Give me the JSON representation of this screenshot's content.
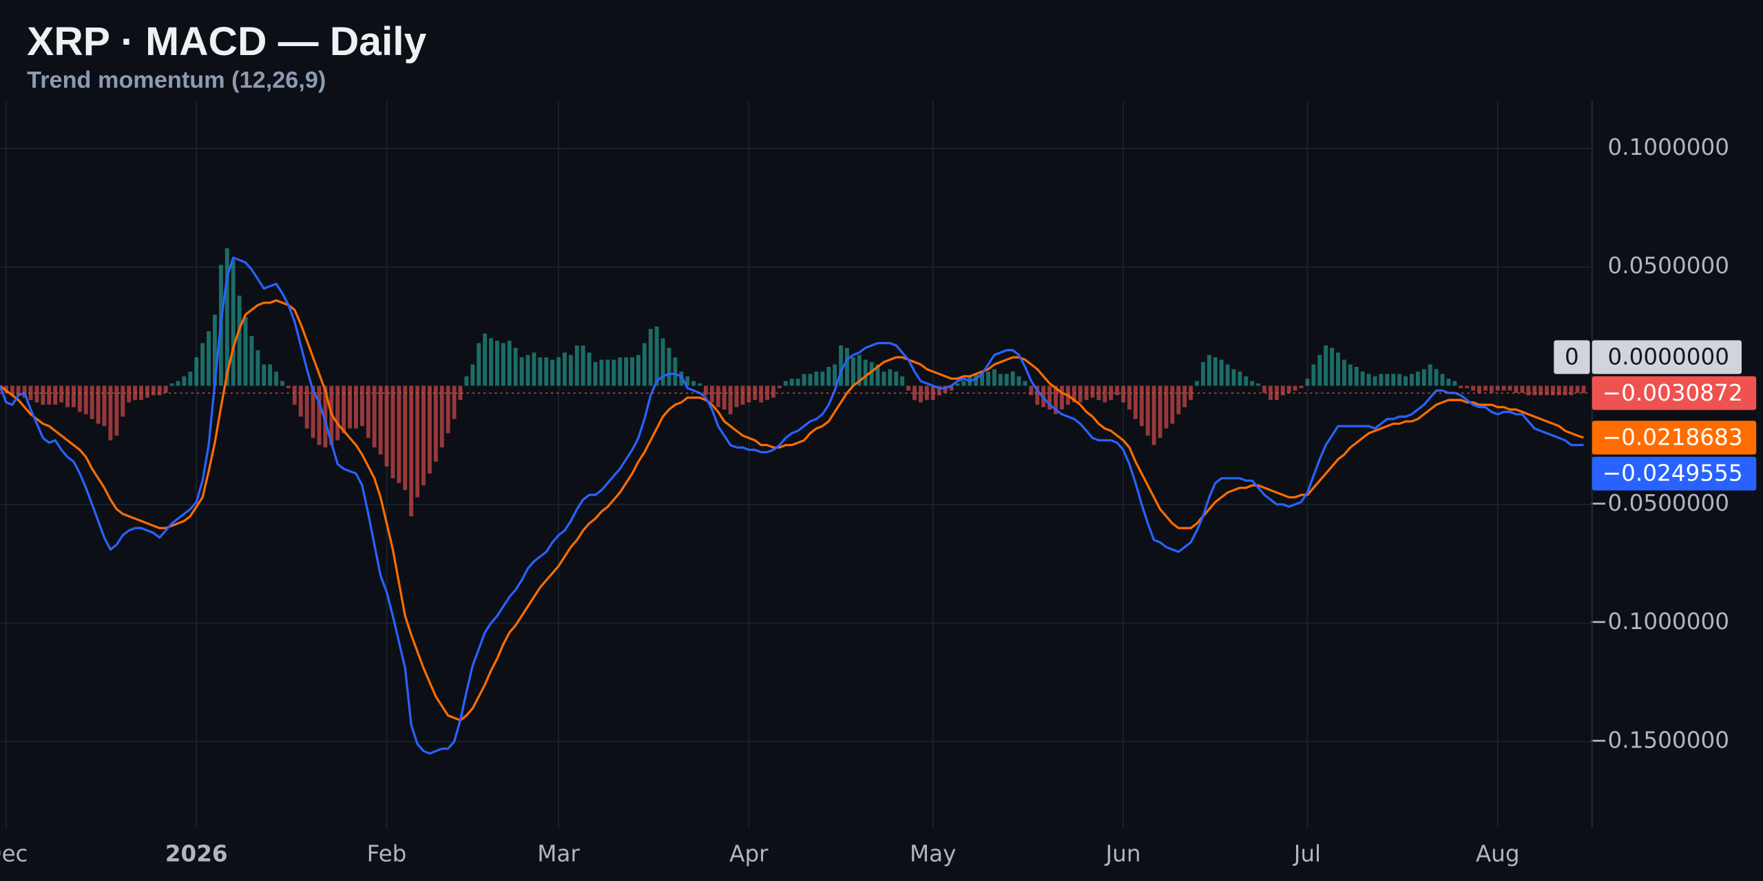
{
  "chart_data": {
    "type": "line",
    "title": "XRP · MACD — Daily",
    "subtitle": "Trend momentum (12,26,9)",
    "xlim": [
      0,
      259.2
    ],
    "xticks": [
      {
        "value": 1,
        "label": "Dec"
      },
      {
        "value": 32,
        "label": "2026"
      },
      {
        "value": 63,
        "label": "Feb"
      },
      {
        "value": 91,
        "label": "Mar"
      },
      {
        "value": 122,
        "label": "Apr"
      },
      {
        "value": 152,
        "label": "May"
      },
      {
        "value": 183,
        "label": "Jun"
      },
      {
        "value": 213,
        "label": "Jul"
      },
      {
        "value": 244,
        "label": "Aug"
      }
    ],
    "ylim": [
      -0.1865,
      0.12
    ],
    "yticks": [
      {
        "value": 0.1,
        "label": "0.1000000"
      },
      {
        "value": 0.05,
        "label": "0.0500000"
      },
      {
        "value": -0.05,
        "label": "−0.0500000"
      },
      {
        "value": -0.1,
        "label": "−0.1000000"
      },
      {
        "value": -0.15,
        "label": "−0.1500000"
      }
    ],
    "grid": true,
    "zero_line": {
      "value": 0,
      "title": "0",
      "label": "0.0000000"
    },
    "series": [
      {
        "type": "bar",
        "color": "#ef5350",
        "positive_color": "#26a69a",
        "last_label": "−0.0030872",
        "values": [
          -0.002,
          -0.003,
          -0.004,
          -0.004,
          -0.005,
          -0.006,
          -0.007,
          -0.008,
          -0.008,
          -0.008,
          -0.007,
          -0.009,
          -0.009,
          -0.011,
          -0.012,
          -0.014,
          -0.016,
          -0.017,
          -0.023,
          -0.021,
          -0.013,
          -0.007,
          -0.006,
          -0.006,
          -0.005,
          -0.004,
          -0.004,
          -0.003,
          0.001,
          0.002,
          0.004,
          0.006,
          0.012,
          0.018,
          0.023,
          0.03,
          0.051,
          0.058,
          0.053,
          0.038,
          0.029,
          0.021,
          0.015,
          0.009,
          0.009,
          0.006,
          0.002,
          -0.001,
          -0.008,
          -0.013,
          -0.018,
          -0.022,
          -0.025,
          -0.026,
          -0.025,
          -0.023,
          -0.02,
          -0.018,
          -0.018,
          -0.017,
          -0.022,
          -0.026,
          -0.029,
          -0.034,
          -0.039,
          -0.041,
          -0.044,
          -0.055,
          -0.047,
          -0.042,
          -0.037,
          -0.032,
          -0.026,
          -0.02,
          -0.014,
          -0.006,
          0.004,
          0.009,
          0.018,
          0.022,
          0.02,
          0.019,
          0.018,
          0.019,
          0.016,
          0.012,
          0.013,
          0.014,
          0.012,
          0.012,
          0.011,
          0.012,
          0.014,
          0.013,
          0.017,
          0.017,
          0.014,
          0.01,
          0.011,
          0.011,
          0.011,
          0.012,
          0.012,
          0.012,
          0.013,
          0.018,
          0.024,
          0.025,
          0.02,
          0.016,
          0.012,
          0.006,
          0.004,
          0.002,
          0.001,
          -0.004,
          -0.007,
          -0.009,
          -0.01,
          -0.012,
          -0.009,
          -0.008,
          -0.007,
          -0.006,
          -0.007,
          -0.006,
          -0.005,
          -0.001,
          0.002,
          0.003,
          0.003,
          0.005,
          0.005,
          0.006,
          0.006,
          0.008,
          0.009,
          0.017,
          0.016,
          0.012,
          0.013,
          0.011,
          0.01,
          0.009,
          0.006,
          0.007,
          0.006,
          0.004,
          -0.002,
          -0.006,
          -0.007,
          -0.006,
          -0.006,
          -0.004,
          -0.003,
          -0.002,
          0.001,
          0.002,
          0.004,
          0.005,
          0.005,
          0.006,
          0.007,
          0.005,
          0.005,
          0.006,
          0.004,
          0.002,
          -0.004,
          -0.008,
          -0.009,
          -0.01,
          -0.012,
          -0.01,
          -0.008,
          -0.007,
          -0.007,
          -0.006,
          -0.005,
          -0.006,
          -0.007,
          -0.006,
          -0.004,
          -0.007,
          -0.01,
          -0.014,
          -0.017,
          -0.021,
          -0.025,
          -0.022,
          -0.018,
          -0.016,
          -0.012,
          -0.009,
          -0.006,
          0.002,
          0.01,
          0.013,
          0.012,
          0.011,
          0.009,
          0.007,
          0.006,
          0.004,
          0.002,
          0.001,
          -0.003,
          -0.006,
          -0.006,
          -0.004,
          -0.003,
          -0.002,
          -0.001,
          0.003,
          0.009,
          0.013,
          0.017,
          0.016,
          0.014,
          0.011,
          0.009,
          0.008,
          0.006,
          0.005,
          0.004,
          0.005,
          0.005,
          0.005,
          0.005,
          0.004,
          0.005,
          0.006,
          0.007,
          0.009,
          0.007,
          0.005,
          0.003,
          0.002,
          -0.001,
          -0.001,
          -0.002,
          -0.003,
          -0.002,
          -0.003,
          -0.002,
          -0.002,
          -0.002,
          -0.003,
          -0.003,
          -0.004,
          -0.004,
          -0.004,
          -0.004,
          -0.004,
          -0.004,
          -0.004,
          -0.004,
          -0.003,
          -0.0030872
        ]
      },
      {
        "type": "line",
        "color": "#ff6d00",
        "last_label": "−0.0218683",
        "values": [
          0,
          -0.002,
          -0.004,
          -0.006,
          -0.009,
          -0.012,
          -0.014,
          -0.016,
          -0.017,
          -0.019,
          -0.021,
          -0.023,
          -0.025,
          -0.027,
          -0.03,
          -0.035,
          -0.039,
          -0.043,
          -0.048,
          -0.052,
          -0.054,
          -0.055,
          -0.056,
          -0.057,
          -0.058,
          -0.059,
          -0.06,
          -0.06,
          -0.059,
          -0.058,
          -0.057,
          -0.055,
          -0.051,
          -0.047,
          -0.036,
          -0.024,
          -0.009,
          0.005,
          0.016,
          0.024,
          0.03,
          0.032,
          0.034,
          0.035,
          0.035,
          0.036,
          0.035,
          0.034,
          0.032,
          0.026,
          0.019,
          0.012,
          0.005,
          -0.002,
          -0.012,
          -0.016,
          -0.019,
          -0.022,
          -0.025,
          -0.029,
          -0.034,
          -0.039,
          -0.047,
          -0.058,
          -0.069,
          -0.083,
          -0.097,
          -0.105,
          -0.112,
          -0.119,
          -0.125,
          -0.131,
          -0.135,
          -0.139,
          -0.14,
          -0.141,
          -0.139,
          -0.136,
          -0.131,
          -0.126,
          -0.12,
          -0.115,
          -0.109,
          -0.104,
          -0.101,
          -0.097,
          -0.093,
          -0.089,
          -0.085,
          -0.082,
          -0.079,
          -0.076,
          -0.072,
          -0.068,
          -0.065,
          -0.061,
          -0.058,
          -0.056,
          -0.053,
          -0.051,
          -0.048,
          -0.045,
          -0.041,
          -0.037,
          -0.032,
          -0.028,
          -0.023,
          -0.018,
          -0.013,
          -0.01,
          -0.008,
          -0.007,
          -0.005,
          -0.005,
          -0.005,
          -0.006,
          -0.008,
          -0.011,
          -0.015,
          -0.017,
          -0.019,
          -0.021,
          -0.022,
          -0.023,
          -0.025,
          -0.025,
          -0.026,
          -0.026,
          -0.025,
          -0.025,
          -0.024,
          -0.023,
          -0.02,
          -0.018,
          -0.017,
          -0.015,
          -0.011,
          -0.007,
          -0.003,
          0,
          0.002,
          0.004,
          0.006,
          0.008,
          0.01,
          0.011,
          0.012,
          0.012,
          0.011,
          0.01,
          0.009,
          0.007,
          0.006,
          0.005,
          0.004,
          0.003,
          0.003,
          0.004,
          0.004,
          0.005,
          0.006,
          0.007,
          0.009,
          0.01,
          0.011,
          0.012,
          0.012,
          0.011,
          0.009,
          0.007,
          0.004,
          0.001,
          -0.001,
          -0.003,
          -0.004,
          -0.006,
          -0.008,
          -0.011,
          -0.013,
          -0.016,
          -0.018,
          -0.019,
          -0.021,
          -0.023,
          -0.026,
          -0.032,
          -0.037,
          -0.042,
          -0.047,
          -0.052,
          -0.055,
          -0.058,
          -0.06,
          -0.06,
          -0.06,
          -0.058,
          -0.055,
          -0.052,
          -0.049,
          -0.047,
          -0.045,
          -0.044,
          -0.043,
          -0.043,
          -0.042,
          -0.042,
          -0.043,
          -0.044,
          -0.045,
          -0.046,
          -0.047,
          -0.047,
          -0.046,
          -0.046,
          -0.043,
          -0.04,
          -0.037,
          -0.034,
          -0.031,
          -0.029,
          -0.026,
          -0.024,
          -0.022,
          -0.02,
          -0.019,
          -0.018,
          -0.017,
          -0.016,
          -0.016,
          -0.015,
          -0.015,
          -0.014,
          -0.012,
          -0.01,
          -0.008,
          -0.007,
          -0.006,
          -0.006,
          -0.006,
          -0.007,
          -0.007,
          -0.008,
          -0.008,
          -0.008,
          -0.009,
          -0.009,
          -0.01,
          -0.01,
          -0.011,
          -0.012,
          -0.013,
          -0.014,
          -0.015,
          -0.016,
          -0.017,
          -0.019,
          -0.02,
          -0.021,
          -0.0218683
        ]
      },
      {
        "type": "line",
        "color": "#2962ff",
        "last_label": "−0.0249555",
        "values": [
          0,
          -0.007,
          -0.008,
          -0.004,
          -0.003,
          -0.01,
          -0.016,
          -0.022,
          -0.024,
          -0.023,
          -0.027,
          -0.03,
          -0.032,
          -0.037,
          -0.043,
          -0.05,
          -0.057,
          -0.064,
          -0.069,
          -0.067,
          -0.063,
          -0.061,
          -0.06,
          -0.06,
          -0.061,
          -0.062,
          -0.064,
          -0.061,
          -0.058,
          -0.056,
          -0.054,
          -0.052,
          -0.049,
          -0.04,
          -0.025,
          0.001,
          0.027,
          0.046,
          0.054,
          0.053,
          0.052,
          0.049,
          0.045,
          0.041,
          0.042,
          0.043,
          0.039,
          0.034,
          0.027,
          0.017,
          0.007,
          -0.002,
          -0.007,
          -0.015,
          -0.024,
          -0.033,
          -0.035,
          -0.036,
          -0.037,
          -0.042,
          -0.054,
          -0.067,
          -0.08,
          -0.087,
          -0.097,
          -0.108,
          -0.119,
          -0.143,
          -0.151,
          -0.154,
          -0.155,
          -0.154,
          -0.153,
          -0.153,
          -0.15,
          -0.141,
          -0.129,
          -0.118,
          -0.111,
          -0.104,
          -0.1,
          -0.097,
          -0.093,
          -0.089,
          -0.086,
          -0.082,
          -0.077,
          -0.074,
          -0.072,
          -0.07,
          -0.066,
          -0.063,
          -0.061,
          -0.057,
          -0.052,
          -0.048,
          -0.046,
          -0.046,
          -0.044,
          -0.041,
          -0.038,
          -0.035,
          -0.031,
          -0.027,
          -0.022,
          -0.014,
          -0.004,
          0.002,
          0.004,
          0.005,
          0.005,
          0.004,
          -0.001,
          -0.002,
          -0.003,
          -0.005,
          -0.01,
          -0.017,
          -0.021,
          -0.025,
          -0.026,
          -0.026,
          -0.027,
          -0.027,
          -0.028,
          -0.028,
          -0.027,
          -0.025,
          -0.022,
          -0.02,
          -0.019,
          -0.017,
          -0.015,
          -0.014,
          -0.012,
          -0.008,
          -0.002,
          0.006,
          0.011,
          0.013,
          0.014,
          0.016,
          0.017,
          0.018,
          0.018,
          0.018,
          0.017,
          0.014,
          0.011,
          0.006,
          0.002,
          0.001,
          0,
          -0.001,
          -0.001,
          0,
          0.002,
          0.003,
          0.002,
          0.003,
          0.005,
          0.009,
          0.013,
          0.014,
          0.015,
          0.015,
          0.013,
          0.008,
          0.002,
          -0.002,
          -0.005,
          -0.008,
          -0.01,
          -0.012,
          -0.013,
          -0.014,
          -0.016,
          -0.019,
          -0.022,
          -0.023,
          -0.023,
          -0.023,
          -0.024,
          -0.027,
          -0.033,
          -0.041,
          -0.05,
          -0.058,
          -0.065,
          -0.066,
          -0.068,
          -0.069,
          -0.07,
          -0.068,
          -0.066,
          -0.061,
          -0.055,
          -0.047,
          -0.041,
          -0.039,
          -0.039,
          -0.039,
          -0.039,
          -0.04,
          -0.04,
          -0.043,
          -0.046,
          -0.048,
          -0.05,
          -0.05,
          -0.051,
          -0.05,
          -0.049,
          -0.045,
          -0.038,
          -0.031,
          -0.025,
          -0.021,
          -0.017,
          -0.017,
          -0.017,
          -0.017,
          -0.017,
          -0.017,
          -0.018,
          -0.016,
          -0.014,
          -0.014,
          -0.013,
          -0.013,
          -0.012,
          -0.01,
          -0.008,
          -0.005,
          -0.002,
          -0.002,
          -0.003,
          -0.003,
          -0.004,
          -0.006,
          -0.008,
          -0.009,
          -0.009,
          -0.011,
          -0.012,
          -0.011,
          -0.011,
          -0.012,
          -0.012,
          -0.015,
          -0.018,
          -0.019,
          -0.02,
          -0.021,
          -0.022,
          -0.023,
          -0.025,
          -0.025,
          -0.0249555
        ]
      }
    ]
  }
}
